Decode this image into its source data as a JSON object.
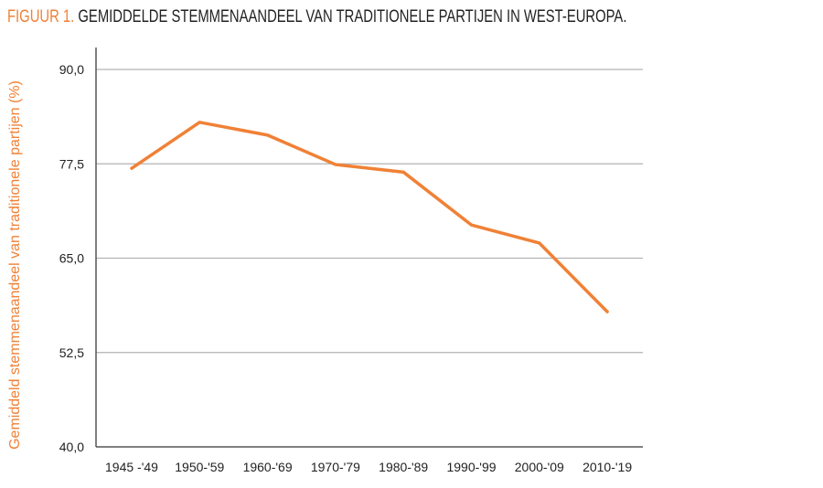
{
  "title": {
    "figure_label": "FIGUUR 1.",
    "text": "GEMIDDELDE STEMMENAANDEEL VAN TRADITIONELE PARTIJEN IN WEST-EUROPA."
  },
  "colors": {
    "accent": "#f08136",
    "grid": "#b3b3b3",
    "axis": "#555555"
  },
  "chart_data": {
    "type": "line",
    "title": "GEMIDDELDE STEMMENAANDEEL VAN TRADITIONELE PARTIJEN IN WEST-EUROPA.",
    "xlabel": "",
    "ylabel": "Gemiddeld stemmenaandeel van traditionele partijen (%)",
    "categories": [
      "1945 -'49",
      "1950-'59",
      "1960-'69",
      "1970-'79",
      "1980-'89",
      "1990-'99",
      "2000-'09",
      "2010-'19"
    ],
    "values": [
      76.9,
      83.0,
      81.3,
      77.4,
      76.4,
      69.4,
      67.0,
      57.9
    ],
    "ylim": [
      40,
      90
    ],
    "yticks": [
      40,
      52.5,
      65,
      77.5,
      90
    ],
    "ytick_labels": [
      "40,0",
      "52,5",
      "65,0",
      "77,5",
      "90,0"
    ],
    "grid": true,
    "line_color": "#f08136"
  }
}
